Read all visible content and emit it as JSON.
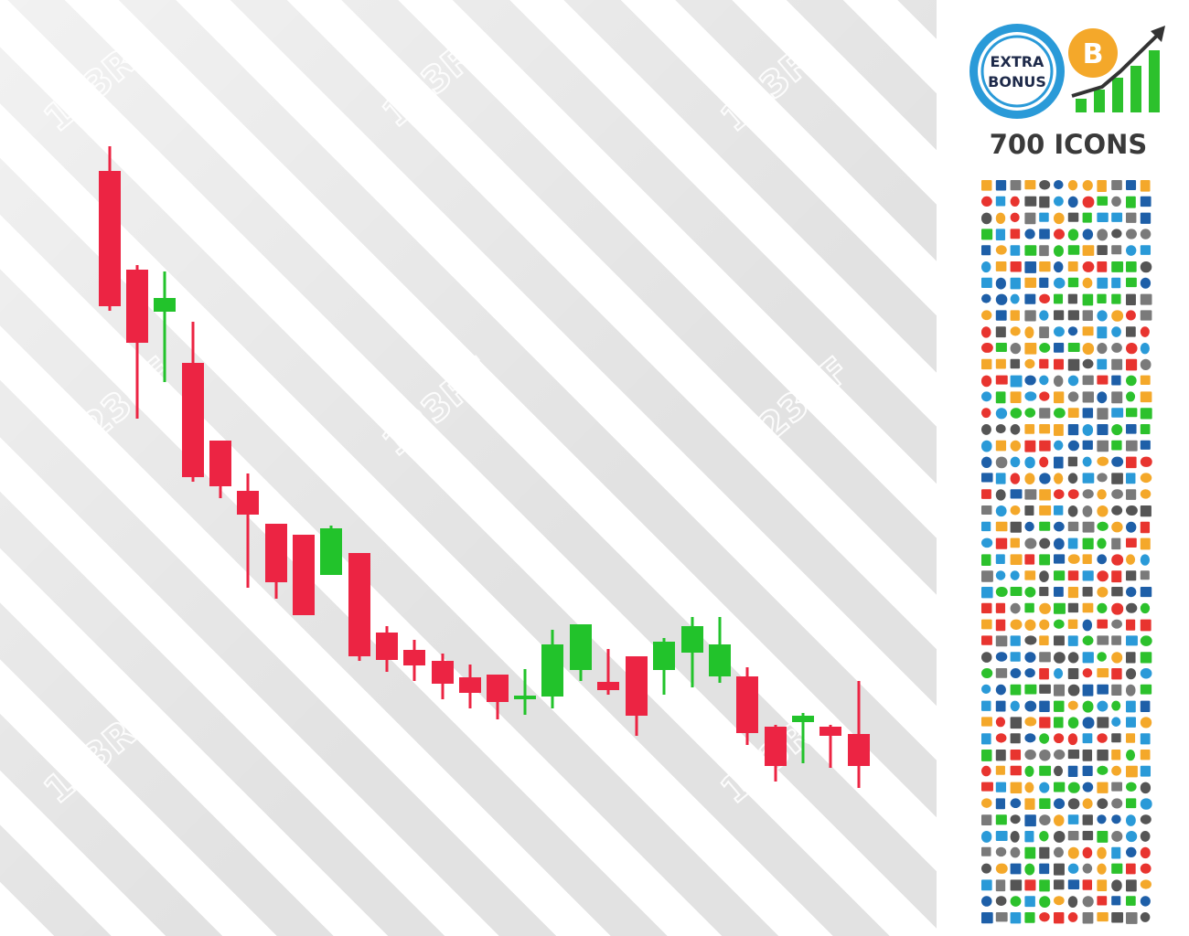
{
  "watermark": "123RF",
  "badge": {
    "line1": "EXTRA",
    "line2": "BONUS"
  },
  "bitcoin_symbol": "B",
  "headline": "700 ICONS"
}
